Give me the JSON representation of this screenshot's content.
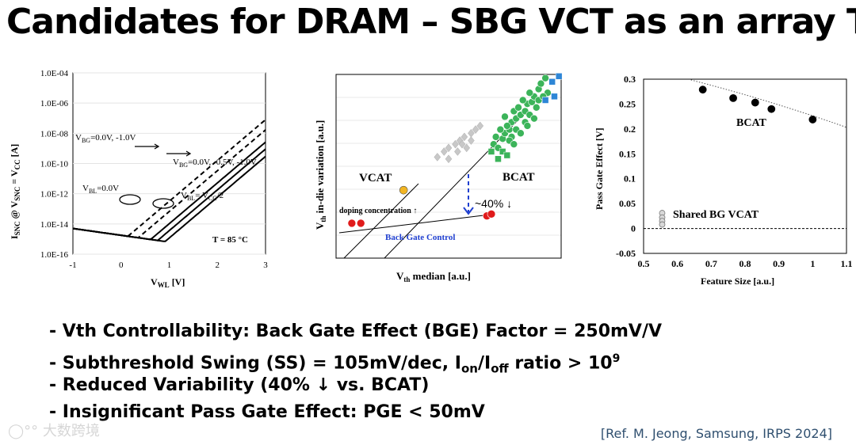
{
  "slide": {
    "title": "Candidates for DRAM – SBG VCT as an array Tr.",
    "bullets": [
      {
        "pre": "- Vth Controllability: Back Gate Effect (BGE) Factor = 250mV/V"
      },
      {
        "pre": "- Subthreshold Swing (SS) = 105mV/dec, I",
        "sub1": "on",
        "mid": "/I",
        "sub2": "off",
        "post": " ratio > 10",
        "sup": "9"
      },
      {
        "pre": "- Reduced Variability (40% ↓ vs. BCAT)"
      },
      {
        "pre": "- Insignificant Pass Gate Effect: PGE < 50mV"
      }
    ],
    "reference": "[Ref. M. Jeong, Samsung, IRPS 2024]",
    "watermark": "大数跨境"
  },
  "chart_data": [
    {
      "type": "line",
      "title": "",
      "xlabel": "V_WL [V]",
      "ylabel": "I_SNC @ V_SNC = V_CC [A]",
      "xlim": [
        -1,
        3
      ],
      "ylim_log10": [
        -16,
        -4
      ],
      "x_ticks": [
        "-1",
        "0",
        "1",
        "2",
        "3"
      ],
      "y_ticks": [
        "1.0E-16",
        "1.0E-14",
        "1.0E-12",
        "1.0E-10",
        "1.0E-08",
        "1.0E-06",
        "1.0E-04"
      ],
      "annotations": {
        "vbg_left_main": "V",
        "vbg_left_sub": "BG",
        "vbg_left_rest": "=0.0V, -1.0V",
        "vbg_right_main": "V",
        "vbg_right_sub": "BG",
        "vbg_right_rest": "=0.0V, -0.5V, -1.0V",
        "vbl0_main": "V",
        "vbl0_sub": "BL",
        "vbl0_rest": "=0.0V",
        "vbl2_main": "V",
        "vbl2_sub": "BL",
        "vbl2_mid": "= V",
        "vbl2_sub2": "CC",
        "vbl2_rest": "/2",
        "temp": "T = 85 °C"
      },
      "series": [
        {
          "name": "VBL=0.0V, VBG=0.0V",
          "dashed": true,
          "vth": 0.0
        },
        {
          "name": "VBL=0.0V, VBG=-1.0V",
          "dashed": true,
          "vth": 0.25
        },
        {
          "name": "VBL=VCC/2, VBG=0.0V",
          "dashed": false,
          "vth": 0.55
        },
        {
          "name": "VBL=VCC/2, VBG=-0.5V",
          "dashed": false,
          "vth": 0.72
        },
        {
          "name": "VBL=VCC/2, VBG=-1.0V",
          "dashed": false,
          "vth": 0.9
        }
      ]
    },
    {
      "type": "scatter",
      "title": "",
      "xlabel_main": "V",
      "xlabel_sub": "th",
      "xlabel_rest": " median [a.u.]",
      "ylabel_main": "V",
      "ylabel_sub": "th",
      "ylabel_rest": " in-die variation [a.u.]",
      "xlim": [
        0,
        1
      ],
      "ylim": [
        0,
        1
      ],
      "labels": {
        "vcat": "VCAT",
        "bcat": "BCAT",
        "doping": "doping concentration ↑",
        "backgate": "Back Gate Control",
        "reduction": "~40% ↓"
      },
      "series": [
        {
          "name": "VCAT red",
          "color": "#e01b1b",
          "points": [
            [
              0.07,
              0.19
            ],
            [
              0.11,
              0.19
            ],
            [
              0.67,
              0.23
            ],
            [
              0.69,
              0.24
            ]
          ]
        },
        {
          "name": "VCAT orange",
          "color": "#f2b522",
          "points": [
            [
              0.3,
              0.37
            ]
          ]
        },
        {
          "name": "gray",
          "color": "#c8c8c8",
          "points": [
            [
              0.45,
              0.55
            ],
            [
              0.48,
              0.58
            ],
            [
              0.5,
              0.6
            ],
            [
              0.53,
              0.62
            ],
            [
              0.55,
              0.64
            ],
            [
              0.57,
              0.66
            ],
            [
              0.6,
              0.68
            ],
            [
              0.62,
              0.7
            ],
            [
              0.54,
              0.58
            ],
            [
              0.58,
              0.6
            ],
            [
              0.5,
              0.54
            ],
            [
              0.6,
              0.64
            ],
            [
              0.64,
              0.72
            ],
            [
              0.56,
              0.62
            ]
          ]
        },
        {
          "name": "BCAT green",
          "color": "#3cb45a",
          "points": [
            [
              0.7,
              0.62
            ],
            [
              0.72,
              0.6
            ],
            [
              0.74,
              0.65
            ],
            [
              0.75,
              0.68
            ],
            [
              0.73,
              0.7
            ],
            [
              0.77,
              0.7
            ],
            [
              0.78,
              0.74
            ],
            [
              0.76,
              0.72
            ],
            [
              0.8,
              0.76
            ],
            [
              0.82,
              0.78
            ],
            [
              0.79,
              0.8
            ],
            [
              0.84,
              0.8
            ],
            [
              0.85,
              0.84
            ],
            [
              0.83,
              0.86
            ],
            [
              0.87,
              0.85
            ],
            [
              0.88,
              0.88
            ],
            [
              0.86,
              0.9
            ],
            [
              0.9,
              0.92
            ],
            [
              0.91,
              0.95
            ],
            [
              0.81,
              0.82
            ],
            [
              0.78,
              0.66
            ],
            [
              0.74,
              0.58
            ],
            [
              0.71,
              0.66
            ],
            [
              0.77,
              0.64
            ],
            [
              0.8,
              0.7
            ],
            [
              0.89,
              0.82
            ],
            [
              0.93,
              0.98
            ],
            [
              0.86,
              0.78
            ],
            [
              0.76,
              0.56
            ],
            [
              0.72,
              0.54
            ],
            [
              0.84,
              0.74
            ],
            [
              0.82,
              0.68
            ],
            [
              0.9,
              0.86
            ],
            [
              0.75,
              0.77
            ],
            [
              0.79,
              0.62
            ],
            [
              0.69,
              0.58
            ],
            [
              0.88,
              0.76
            ],
            [
              0.94,
              0.9
            ],
            [
              0.92,
              0.88
            ],
            [
              0.85,
              0.72
            ]
          ]
        },
        {
          "name": "blue",
          "color": "#2e86d6",
          "points": [
            [
              0.96,
              0.96
            ],
            [
              0.99,
              0.99
            ],
            [
              0.97,
              0.88
            ],
            [
              0.93,
              0.86
            ]
          ]
        }
      ]
    },
    {
      "type": "scatter",
      "title": "",
      "xlabel": "Feature Size [a.u.]",
      "ylabel": "Pass Gate Effect [V]",
      "xlim": [
        0.5,
        1.1
      ],
      "ylim": [
        -0.05,
        0.3
      ],
      "x_ticks": [
        "0.5",
        "0.6",
        "0.7",
        "0.8",
        "0.9",
        "1",
        "1.1"
      ],
      "y_ticks": [
        "-0.05",
        "0",
        "0.05",
        "0.1",
        "0.15",
        "0.2",
        "0.25",
        "0.3"
      ],
      "labels": {
        "bcat": "BCAT",
        "shared": "Shared BG VCAT"
      },
      "series": [
        {
          "name": "BCAT",
          "color": "#000000",
          "points": [
            [
              0.675,
              0.279
            ],
            [
              0.765,
              0.262
            ],
            [
              0.83,
              0.253
            ],
            [
              0.878,
              0.24
            ],
            [
              1.0,
              0.219
            ]
          ]
        },
        {
          "name": "Shared BG VCAT",
          "color": "#a0a0a0",
          "points": [
            [
              0.555,
              0.031
            ],
            [
              0.555,
              0.022
            ],
            [
              0.555,
              0.015
            ],
            [
              0.555,
              0.008
            ]
          ]
        }
      ]
    }
  ]
}
